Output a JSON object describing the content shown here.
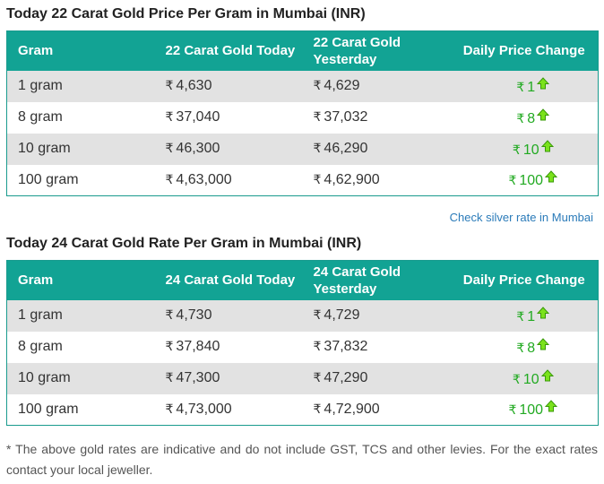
{
  "table_22": {
    "title": "Today 22 Carat Gold Price Per Gram in Mumbai (INR)",
    "headers": {
      "gram": "Gram",
      "today": "22 Carat Gold Today",
      "yesterday": "22 Carat Gold Yesterday",
      "change": "Daily Price Change"
    },
    "rows": [
      {
        "gram": "1 gram",
        "today": "4,630",
        "yesterday": "4,629",
        "change": "1"
      },
      {
        "gram": "8 gram",
        "today": "37,040",
        "yesterday": "37,032",
        "change": "8"
      },
      {
        "gram": "10 gram",
        "today": "46,300",
        "yesterday": "46,290",
        "change": "10"
      },
      {
        "gram": "100 gram",
        "today": "4,63,000",
        "yesterday": "4,62,900",
        "change": "100"
      }
    ]
  },
  "silver_link": "Check silver rate in Mumbai",
  "table_24": {
    "title": "Today 24 Carat Gold Rate Per Gram in Mumbai (INR)",
    "headers": {
      "gram": "Gram",
      "today": "24 Carat Gold Today",
      "yesterday": "24 Carat Gold Yesterday",
      "change": "Daily Price Change"
    },
    "rows": [
      {
        "gram": "1 gram",
        "today": "4,730",
        "yesterday": "4,729",
        "change": "1"
      },
      {
        "gram": "8 gram",
        "today": "37,840",
        "yesterday": "37,832",
        "change": "8"
      },
      {
        "gram": "10 gram",
        "today": "47,300",
        "yesterday": "47,290",
        "change": "10"
      },
      {
        "gram": "100 gram",
        "today": "4,73,000",
        "yesterday": "4,72,900",
        "change": "100"
      }
    ]
  },
  "currency_symbol": "₹",
  "disclaimer": "* The above gold rates are indicative and do not include GST, TCS and other levies. For the exact rates contact your local jeweller.",
  "colors": {
    "header_bg": "#12a394",
    "row_alt_bg": "#e2e2e2",
    "price_up": "#22aa22",
    "arrow_fill": "#7be21c",
    "link": "#2b7bb9"
  },
  "icons": {
    "price_up": "up-arrow-icon"
  }
}
